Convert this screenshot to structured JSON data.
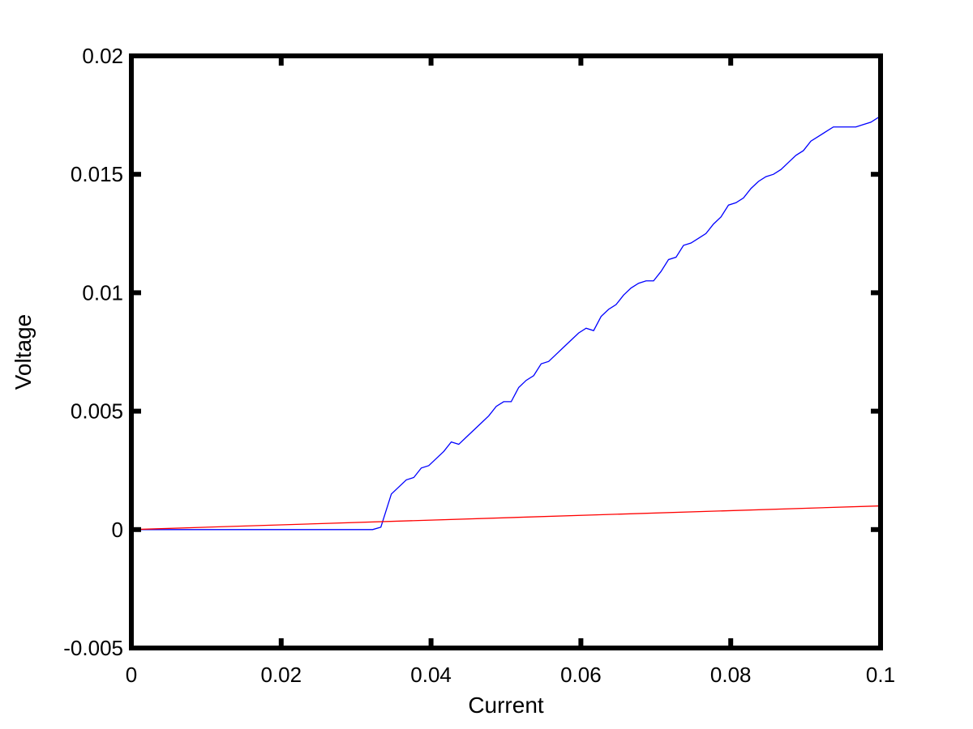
{
  "chart_data": {
    "type": "line",
    "title": "",
    "xlabel": "Current",
    "ylabel": "Voltage",
    "xlim": [
      0,
      0.1
    ],
    "ylim": [
      -0.005,
      0.02
    ],
    "xticks": [
      0,
      0.02,
      0.04,
      0.06,
      0.08,
      0.1
    ],
    "xtick_labels": [
      "0",
      "0.02",
      "0.04",
      "0.06",
      "0.08",
      "0.1"
    ],
    "yticks": [
      -0.005,
      0,
      0.005,
      0.01,
      0.015,
      0.02
    ],
    "ytick_labels": [
      "-0.005",
      "0",
      "0.005",
      "0.01",
      "0.015",
      "0.02"
    ],
    "grid": false,
    "legend": "none",
    "series": [
      {
        "color": "#0000ff",
        "x": [
          0,
          0.01,
          0.02,
          0.031,
          0.0322,
          0.0333,
          0.0347,
          0.0357,
          0.0367,
          0.0377,
          0.0387,
          0.0397,
          0.0407,
          0.0417,
          0.0427,
          0.0437,
          0.0447,
          0.0457,
          0.0467,
          0.0477,
          0.0487,
          0.0497,
          0.0507,
          0.0517,
          0.0527,
          0.0537,
          0.0547,
          0.0557,
          0.0567,
          0.0577,
          0.0587,
          0.0597,
          0.0607,
          0.0617,
          0.0627,
          0.0637,
          0.0647,
          0.0657,
          0.0667,
          0.0677,
          0.0687,
          0.0697,
          0.0707,
          0.0717,
          0.0727,
          0.0737,
          0.0747,
          0.0757,
          0.0767,
          0.0777,
          0.0787,
          0.0797,
          0.0807,
          0.0817,
          0.0827,
          0.0837,
          0.0847,
          0.0857,
          0.0867,
          0.0877,
          0.0887,
          0.0897,
          0.0907,
          0.0917,
          0.0927,
          0.0937,
          0.0947,
          0.0957,
          0.0967,
          0.0977,
          0.0987,
          0.0997,
          0.1
        ],
        "values": [
          0,
          0,
          0,
          0,
          0,
          0.0001,
          0.0015,
          0.0018,
          0.0021,
          0.0022,
          0.0026,
          0.0027,
          0.003,
          0.0033,
          0.0037,
          0.0036,
          0.0039,
          0.0042,
          0.0045,
          0.0048,
          0.0052,
          0.0054,
          0.0054,
          0.006,
          0.0063,
          0.0065,
          0.007,
          0.0071,
          0.0074,
          0.0077,
          0.008,
          0.0083,
          0.0085,
          0.0084,
          0.009,
          0.0093,
          0.0095,
          0.0099,
          0.0102,
          0.0104,
          0.0105,
          0.0105,
          0.0109,
          0.0114,
          0.0115,
          0.012,
          0.0121,
          0.0123,
          0.0125,
          0.0129,
          0.0132,
          0.0137,
          0.0138,
          0.014,
          0.0144,
          0.0147,
          0.0149,
          0.015,
          0.0152,
          0.0155,
          0.0158,
          0.016,
          0.0164,
          0.0166,
          0.0168,
          0.017,
          0.017,
          0.017,
          0.017,
          0.0171,
          0.0172,
          0.0174,
          0.0175
        ]
      },
      {
        "color": "#ff0000",
        "x": [
          0,
          0.1
        ],
        "values": [
          0,
          0.001
        ]
      }
    ]
  }
}
